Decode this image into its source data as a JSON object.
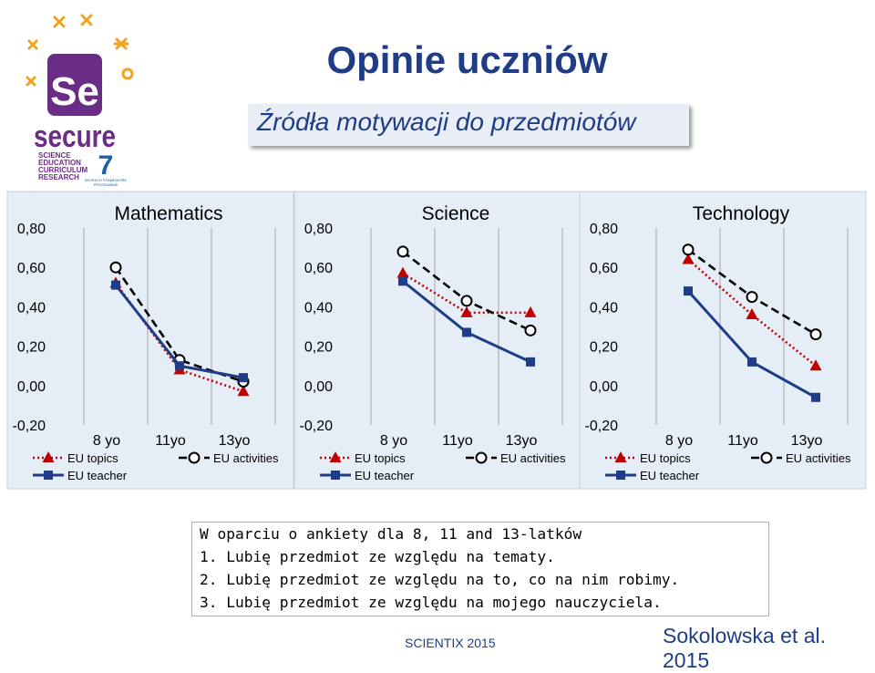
{
  "logo": {
    "big": "Se",
    "word": "secure",
    "lines": [
      "SCIENCE",
      "EDUCATION",
      "CURRICULUM",
      "RESEARCH"
    ],
    "fp_label_1": "SEVENTH FRAMEWORK",
    "fp_label_2": "PROGRAMME",
    "fp_number": "7",
    "colors": {
      "orange": "#f2a21f",
      "purple": "#6a2d86",
      "blue": "#1f5faa"
    }
  },
  "title": "Opinie uczniów",
  "subtitle": "Źródła motywacji do przedmiotów",
  "chart_data": [
    {
      "type": "line",
      "title": "Mathematics",
      "categories": [
        "8 yo",
        "11yo",
        "13yo"
      ],
      "y_tick_labels": [
        "0,80",
        "0,60",
        "0,40",
        "0,20",
        "0,00",
        "-0,20"
      ],
      "ylim": [
        -0.2,
        0.8
      ],
      "grid": "vertical",
      "legend": "bottom",
      "series": [
        {
          "name": "EU topics",
          "values": [
            0.52,
            0.08,
            -0.03
          ],
          "color": "#c00000",
          "marker": "triangle",
          "dash": "dotted"
        },
        {
          "name": "EU activities",
          "values": [
            0.6,
            0.13,
            0.02
          ],
          "color": "#000000",
          "marker": "circle",
          "dash": "dashed"
        },
        {
          "name": "EU teacher",
          "values": [
            0.51,
            0.1,
            0.04
          ],
          "color": "#1f3d86",
          "marker": "square",
          "dash": "solid"
        }
      ]
    },
    {
      "type": "line",
      "title": "Science",
      "categories": [
        "8 yo",
        "11yo",
        "13yo"
      ],
      "y_tick_labels": [
        "0,80",
        "0,60",
        "0,40",
        "0,20",
        "0,00",
        "-0,20"
      ],
      "ylim": [
        -0.2,
        0.8
      ],
      "grid": "vertical",
      "legend": "bottom",
      "series": [
        {
          "name": "EU topics",
          "values": [
            0.57,
            0.37,
            0.37
          ],
          "color": "#c00000",
          "marker": "triangle",
          "dash": "dotted"
        },
        {
          "name": "EU activities",
          "values": [
            0.68,
            0.43,
            0.28
          ],
          "color": "#000000",
          "marker": "circle",
          "dash": "dashed"
        },
        {
          "name": "EU teacher",
          "values": [
            0.53,
            0.27,
            0.12
          ],
          "color": "#1f3d86",
          "marker": "square",
          "dash": "solid"
        }
      ]
    },
    {
      "type": "line",
      "title": "Technology",
      "categories": [
        "8 yo",
        "11yo",
        "13yo"
      ],
      "y_tick_labels": [
        "0,80",
        "0,60",
        "0,40",
        "0,20",
        "0,00",
        "-0,20"
      ],
      "ylim": [
        -0.2,
        0.8
      ],
      "grid": "vertical",
      "legend": "bottom",
      "series": [
        {
          "name": "EU topics",
          "values": [
            0.64,
            0.36,
            0.1
          ],
          "color": "#c00000",
          "marker": "triangle",
          "dash": "dotted"
        },
        {
          "name": "EU activities",
          "values": [
            0.69,
            0.45,
            0.26
          ],
          "color": "#000000",
          "marker": "circle",
          "dash": "dashed"
        },
        {
          "name": "EU teacher",
          "values": [
            0.48,
            0.12,
            -0.06
          ],
          "color": "#1f3d86",
          "marker": "square",
          "dash": "solid"
        }
      ]
    }
  ],
  "note": {
    "lines": [
      "W oparciu o ankiety dla 8, 11 and 13-latków",
      "1. Lubię przedmiot ze względu na tematy.",
      "2. Lubię przedmiot ze względu na to, co na nim robimy.",
      "3. Lubię przedmiot ze względu na mojego nauczyciela."
    ]
  },
  "footer": "SCIENTIX 2015",
  "citation": "Sokolowska et al. 2015"
}
